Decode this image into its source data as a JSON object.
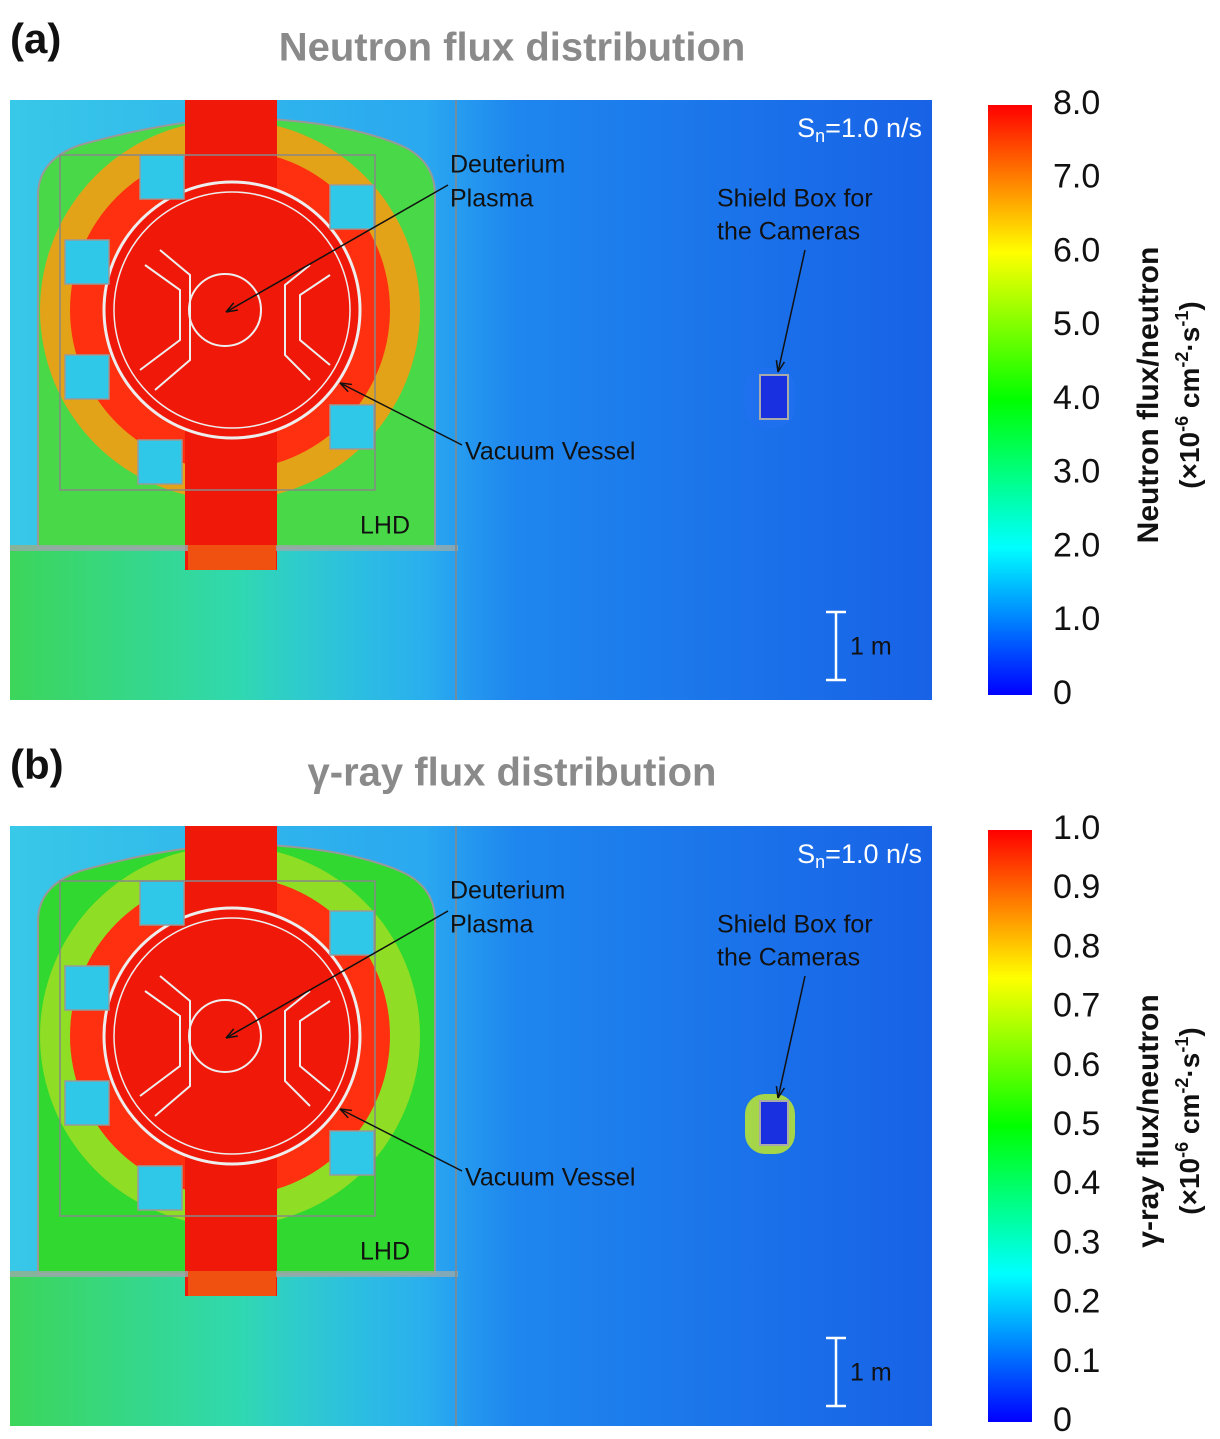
{
  "chart_data": [
    {
      "type": "colormap",
      "panel": "(a)",
      "title": "Neutron flux distribution",
      "source": [
        "S",
        "n",
        "=1.0 n/s"
      ],
      "annotations": [
        "Deuterium",
        "Plasma",
        "Shield Box for",
        "the Cameras",
        "Vacuum  Vessel",
        "LHD",
        "1 m"
      ],
      "colorbar_label": "Neutron flux/neutron",
      "colorbar_unit": [
        "(×10",
        "-6",
        " cm",
        "-2",
        "·s",
        "-1",
        ")"
      ],
      "clim": [
        0,
        8
      ],
      "cticks": [
        0,
        {
          "value": 1,
          "label": "1.0"
        },
        {
          "value": 2,
          "label": "2.0"
        },
        {
          "value": 3,
          "label": "3.0"
        },
        {
          "value": 4,
          "label": "4.0"
        },
        {
          "value": 5,
          "label": "5.0"
        },
        {
          "value": 6,
          "label": "6.0"
        },
        {
          "value": 7,
          "label": "7.0"
        },
        {
          "value": 8,
          "label": "8.0"
        }
      ],
      "colormap": [
        "#0000ff",
        "#00ffff",
        "#00ff00",
        "#ffff00",
        "#ff0000"
      ]
    },
    {
      "type": "colormap",
      "panel": "(b)",
      "title": "γ-ray flux distribution",
      "source": [
        "S",
        "n",
        "=1.0 n/s"
      ],
      "annotations": [
        "Deuterium",
        "Plasma",
        "Shield Box for",
        "the Cameras",
        "Vacuum  Vessel",
        "LHD",
        "1 m"
      ],
      "colorbar_label": "γ-ray flux/neutron",
      "colorbar_unit": [
        "(×10",
        "-6",
        " cm",
        "-2",
        "·s",
        "-1",
        ")"
      ],
      "clim": [
        0,
        1
      ],
      "cticks": [
        0,
        0.1,
        0.2,
        0.3,
        0.4,
        0.5,
        0.6,
        0.7,
        0.8,
        0.9,
        {
          "value": 1,
          "label": "1.0"
        }
      ],
      "colormap": [
        "#0000ff",
        "#00ffff",
        "#00ff00",
        "#ffff00",
        "#ff0000"
      ]
    }
  ]
}
